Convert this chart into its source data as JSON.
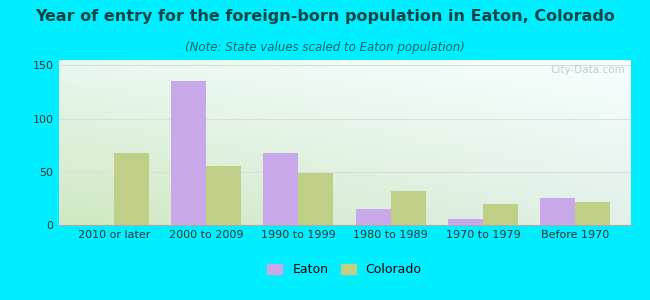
{
  "title": "Year of entry for the foreign-born population in Eaton, Colorado",
  "subtitle": "(Note: State values scaled to Eaton population)",
  "categories": [
    "2010 or later",
    "2000 to 2009",
    "1990 to 1999",
    "1980 to 1989",
    "1970 to 1979",
    "Before 1970"
  ],
  "eaton_values": [
    0,
    135,
    68,
    15,
    6,
    25
  ],
  "colorado_values": [
    68,
    55,
    49,
    32,
    20,
    22
  ],
  "eaton_color": "#c8a8e8",
  "colorado_color": "#c0cf88",
  "background_outer": "#00eeff",
  "ylim": [
    0,
    155
  ],
  "yticks": [
    0,
    50,
    100,
    150
  ],
  "bar_width": 0.38,
  "legend_eaton": "Eaton",
  "legend_colorado": "Colorado",
  "title_fontsize": 11.5,
  "subtitle_fontsize": 8.5,
  "axis_label_fontsize": 8,
  "title_color": "#004444",
  "subtitle_color": "#006666",
  "watermark": "City-Data.com",
  "grid_color": "#dddddd",
  "plot_bg_color_tl": "#e8f8f0",
  "plot_bg_color_tr": "#f8ffff",
  "plot_bg_color_bl": "#d0e8c0",
  "plot_bg_color_br": "#e0f0e8"
}
